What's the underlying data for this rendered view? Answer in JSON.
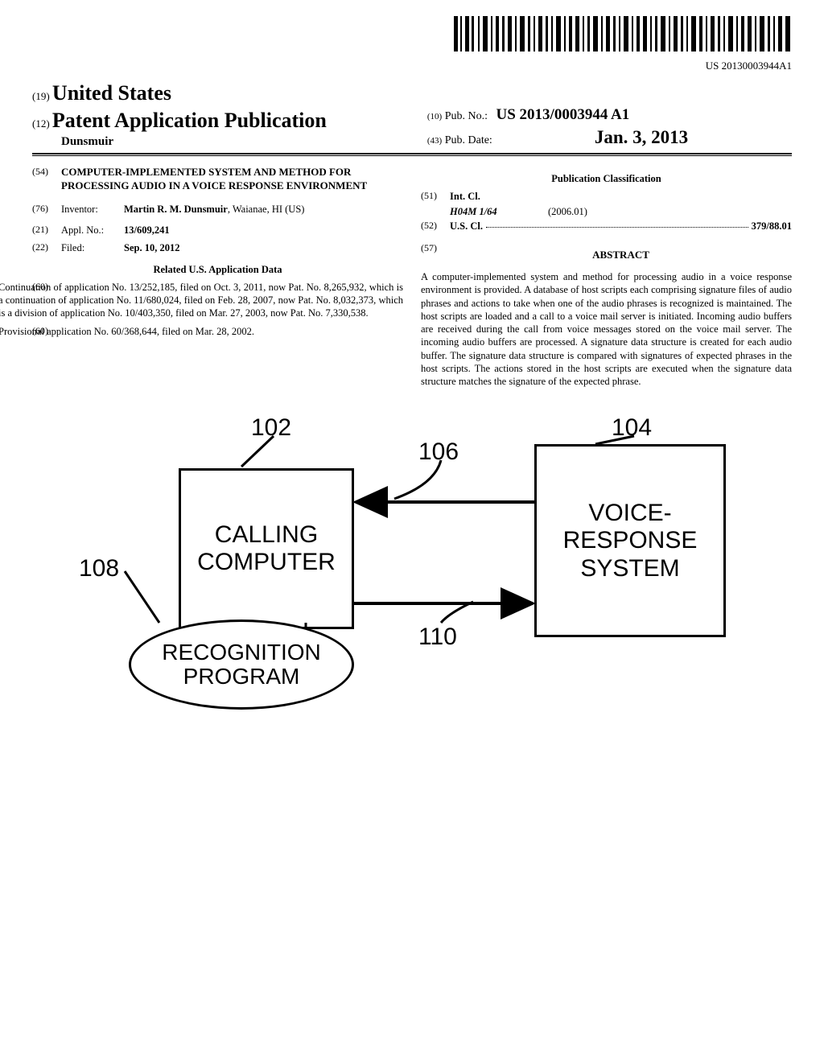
{
  "barcode_number": "US 20130003944A1",
  "header": {
    "country_code": "(19)",
    "country": "United States",
    "pub_code": "(12)",
    "pub_type": "Patent Application Publication",
    "author": "Dunsmuir",
    "pub_no_code": "(10)",
    "pub_no_label": "Pub. No.:",
    "pub_no": "US 2013/0003944 A1",
    "pub_date_code": "(43)",
    "pub_date_label": "Pub. Date:",
    "pub_date": "Jan. 3, 2013"
  },
  "left": {
    "title_code": "(54)",
    "title": "COMPUTER-IMPLEMENTED SYSTEM AND METHOD FOR PROCESSING AUDIO IN A VOICE RESPONSE ENVIRONMENT",
    "inventor_code": "(76)",
    "inventor_label": "Inventor:",
    "inventor_body": "<b>Martin R. M. Dunsmuir</b>, Waianae, HI (US)",
    "appl_code": "(21)",
    "appl_label": "Appl. No.:",
    "appl_body": "<b>13/609,241</b>",
    "filed_code": "(22)",
    "filed_label": "Filed:",
    "filed_body": "<b>Sep. 10, 2012</b>",
    "related_heading": "Related U.S. Application Data",
    "cont_code": "(60)",
    "cont_body": "Continuation of application No. 13/252,185, filed on Oct. 3, 2011, now Pat. No. 8,265,932, which is a continuation of application No. 11/680,024, filed on Feb. 28, 2007, now Pat. No. 8,032,373, which is a division of application No. 10/403,350, filed on Mar. 27, 2003, now Pat. No. 7,330,538.",
    "prov_code": "(60)",
    "prov_body": "Provisional application No. 60/368,644, filed on Mar. 28, 2002."
  },
  "right": {
    "classification_heading": "Publication Classification",
    "intcl_code": "(51)",
    "intcl_label": "Int. Cl.",
    "intcl_key": "H04M 1/64",
    "intcl_val": "(2006.01)",
    "uscl_code": "(52)",
    "uscl_label": "U.S. Cl.",
    "uscl_val": "379/88.01",
    "abstract_code": "(57)",
    "abstract_heading": "ABSTRACT",
    "abstract": "A computer-implemented system and method for processing audio in a voice response environment is provided. A database of host scripts each comprising signature files of audio phrases and actions to take when one of the audio phrases is recognized is maintained. The host scripts are loaded and a call to a voice mail server is initiated. Incoming audio buffers are received during the call from voice messages stored on the voice mail server. The incoming audio buffers are processed. A signature data structure is created for each audio buffer. The signature data structure is compared with signatures of expected phrases in the host scripts. The actions stored in the host scripts are executed when the signature data structure matches the signature of the expected phrase."
  },
  "figure": {
    "label_102": "102",
    "label_104": "104",
    "label_106": "106",
    "label_108": "108",
    "label_110": "110",
    "box_left": "CALLING\nCOMPUTER",
    "box_right": "VOICE-\nRESPONSE\nSYSTEM",
    "ellipse": "RECOGNITION\nPROGRAM"
  }
}
